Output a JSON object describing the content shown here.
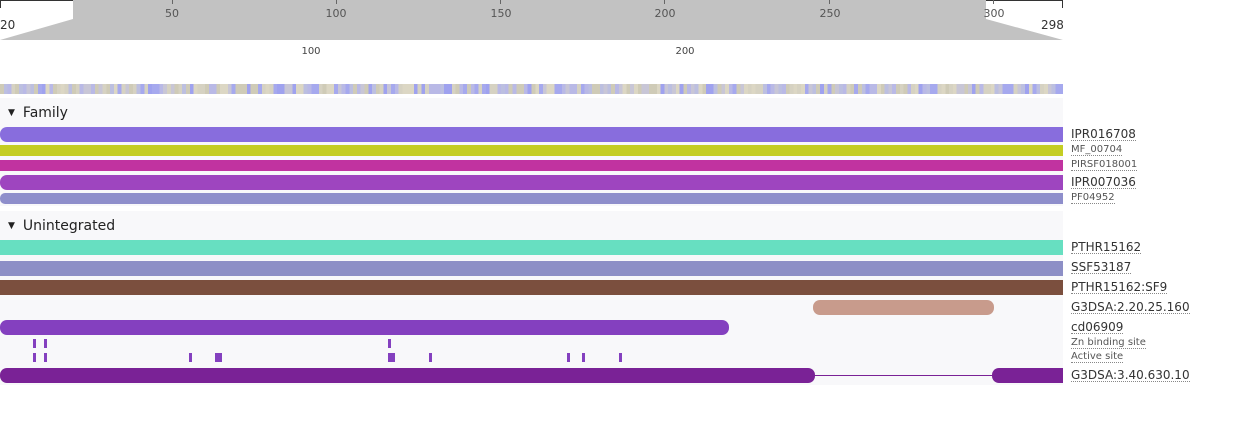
{
  "navigation": {
    "start_label": "20",
    "end_label": "298",
    "ticks": [
      "50",
      "100",
      "150",
      "200",
      "250",
      "300"
    ]
  },
  "axis": {
    "ticks": [
      "100",
      "200"
    ]
  },
  "sections": {
    "family": {
      "title": "Family",
      "tracks": [
        {
          "label": "IPR016708",
          "color": "#886ddd"
        },
        {
          "label": "MF_00704",
          "color": "#c4cd22"
        },
        {
          "label": "PIRSF018001",
          "color": "#c133a0"
        },
        {
          "label": "IPR007036",
          "color": "#9e45bf"
        },
        {
          "label": "PF04952",
          "color": "#8e8ecb"
        }
      ]
    },
    "unintegrated": {
      "title": "Unintegrated",
      "tracks": [
        {
          "label": "PTHR15162",
          "color": "#67dfc1"
        },
        {
          "label": "SSF53187",
          "color": "#8d8fc6"
        },
        {
          "label": "PTHR15162:SF9",
          "color": "#7b4f3e"
        },
        {
          "label": "G3DSA:2.20.25.160",
          "color": "#c89b8c"
        },
        {
          "label": "cd06909",
          "color": "#8440bf"
        },
        {
          "label": "Zn binding site",
          "color": "#8440bf"
        },
        {
          "label": "Active site",
          "color": "#8440bf"
        },
        {
          "label": "G3DSA:3.40.630.10",
          "color": "#7a2296"
        }
      ]
    }
  }
}
